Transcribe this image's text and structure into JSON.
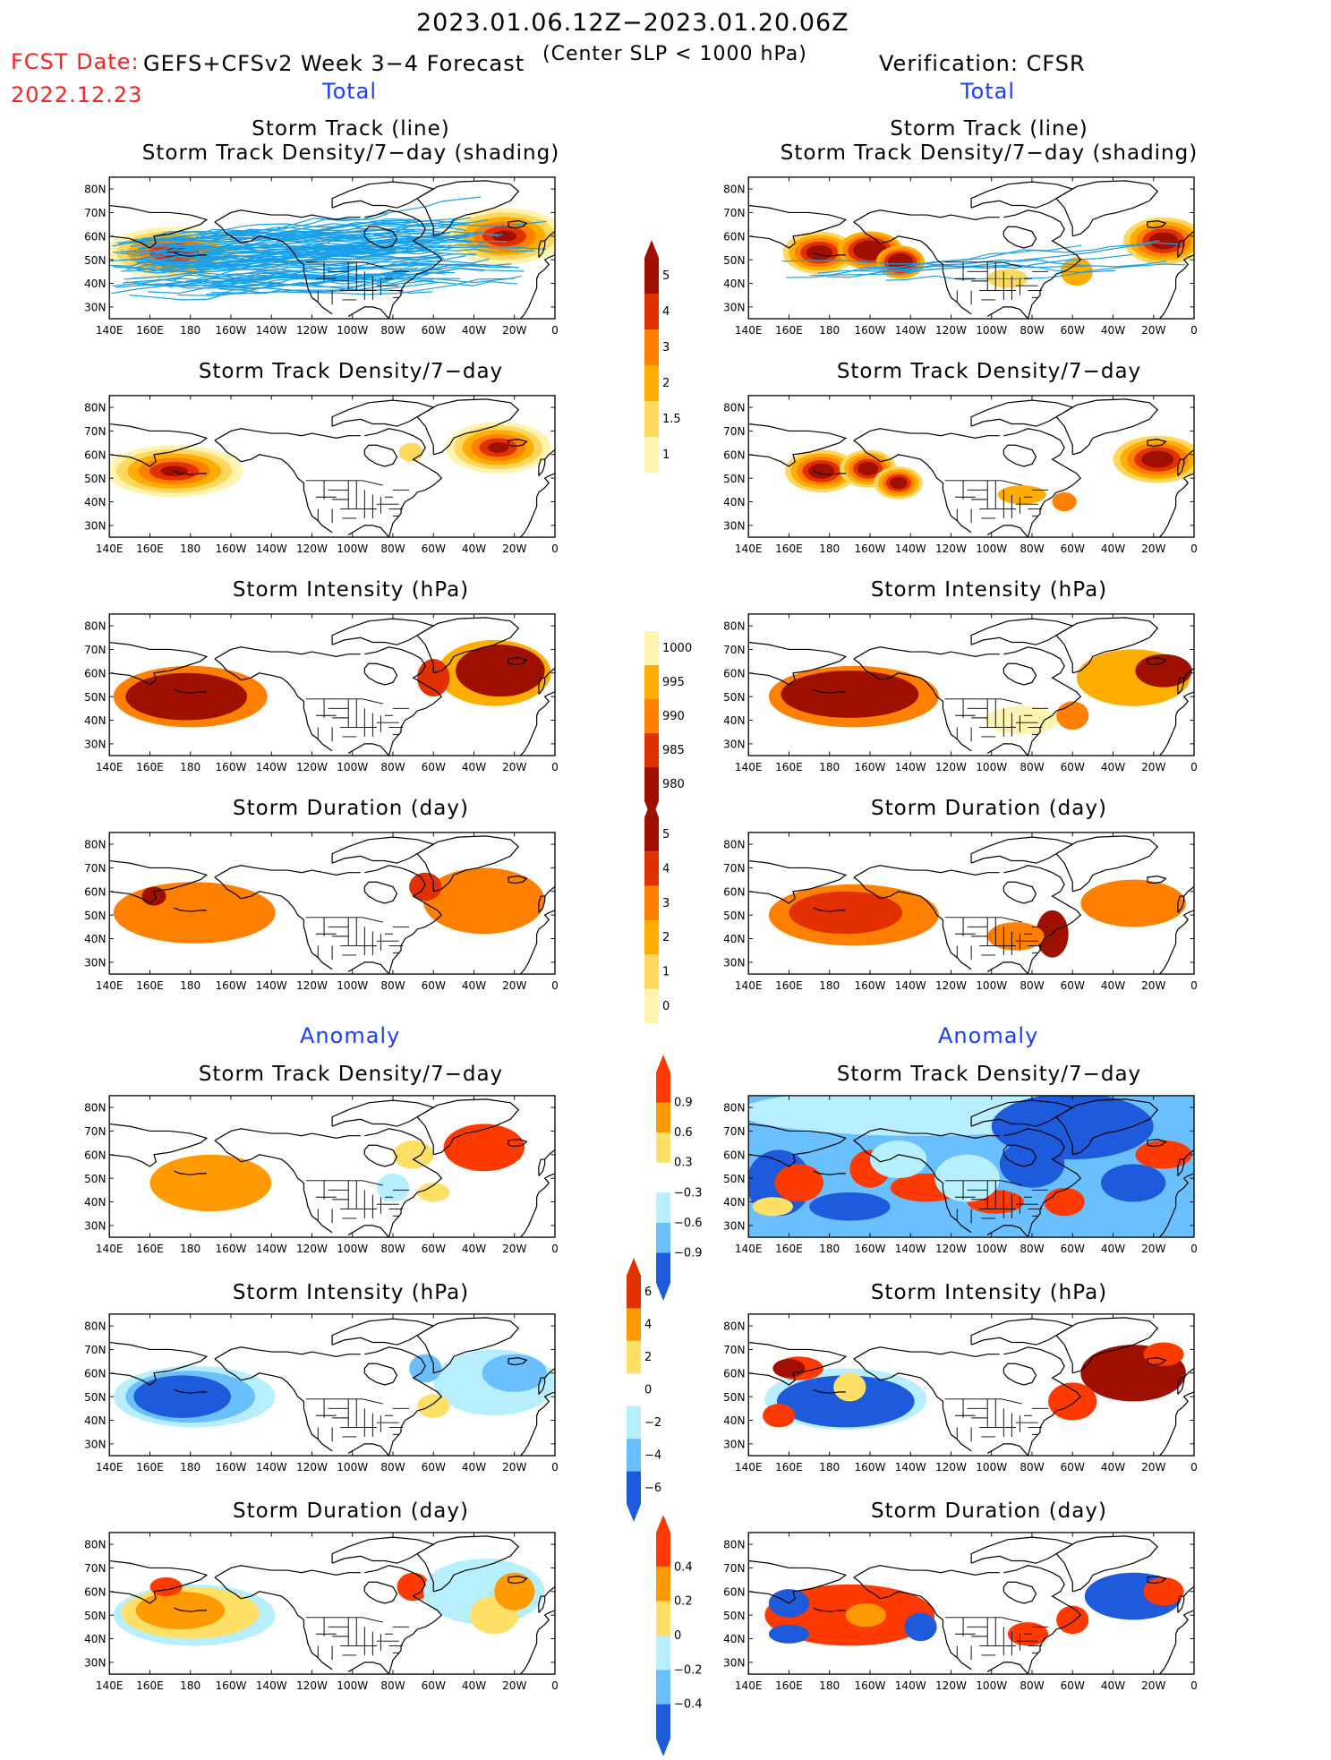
{
  "header": {
    "period": "2023.01.06.12Z−2023.01.20.06Z",
    "fcst_date_label": "FCST Date:",
    "fcst_date_value": "2022.12.23",
    "forecast_system": "GEFS+CFSv2 Week 3−4 Forecast",
    "criterion": "(Center SLP < 1000 hPa)",
    "verification": "Verification: CFSR"
  },
  "sections": {
    "total_left": "Total",
    "total_right": "Total",
    "anomaly_left": "Anomaly",
    "anomaly_right": "Anomaly"
  },
  "panel_titles": {
    "track_line": "Storm Track (line)",
    "track_density_shading": "Storm Track Density/7−day (shading)",
    "track_density": "Storm Track Density/7−day",
    "intensity": "Storm Intensity (hPa)",
    "duration": "Storm Duration (day)"
  },
  "axes": {
    "lon_labels": [
      "140E",
      "160E",
      "180",
      "160W",
      "140W",
      "120W",
      "100W",
      "80W",
      "60W",
      "40W",
      "20W",
      "0"
    ],
    "lat_labels": [
      "80N",
      "70N",
      "60N",
      "50N",
      "40N",
      "30N"
    ]
  },
  "colorbars": {
    "density": {
      "labels": [
        "5",
        "4",
        "3",
        "2",
        "1.5",
        "1"
      ],
      "colors": [
        "#a01000",
        "#e33000",
        "#ff7f00",
        "#ffad00",
        "#ffd75e",
        "#fff3b0"
      ]
    },
    "intensity": {
      "labels": [
        "1000",
        "995",
        "990",
        "985",
        "980"
      ],
      "colors": [
        "#fff3b0",
        "#ffad00",
        "#ff7f00",
        "#e33000",
        "#a01000"
      ]
    },
    "duration": {
      "labels": [
        "5",
        "4",
        "3",
        "2",
        "1",
        "0"
      ],
      "colors": [
        "#a01000",
        "#e33000",
        "#ff7f00",
        "#ffad00",
        "#ffd75e",
        "#fff3b0"
      ]
    },
    "anom_density": {
      "labels": [
        "0.9",
        "0.6",
        "0.3",
        "−0.3",
        "−0.6",
        "−0.9"
      ],
      "colors": [
        "#ff3a00",
        "#ff9a00",
        "#ffe066",
        "#ffffff",
        "#b7efff",
        "#6ac0ff",
        "#1e5adc"
      ]
    },
    "anom_intensity": {
      "labels": [
        "6",
        "4",
        "2",
        "0",
        "−2",
        "−4",
        "−6"
      ],
      "colors": [
        "#e33000",
        "#ff9a00",
        "#ffe066",
        "#ffffff",
        "#b7efff",
        "#6ac0ff",
        "#1e5adc"
      ]
    },
    "anom_duration": {
      "labels": [
        "0.4",
        "0.2",
        "0",
        "−0.2",
        "−0.4"
      ],
      "colors": [
        "#ff3a00",
        "#ff9a00",
        "#ffe066",
        "#b7efff",
        "#6ac0ff",
        "#1e5adc"
      ]
    }
  }
}
